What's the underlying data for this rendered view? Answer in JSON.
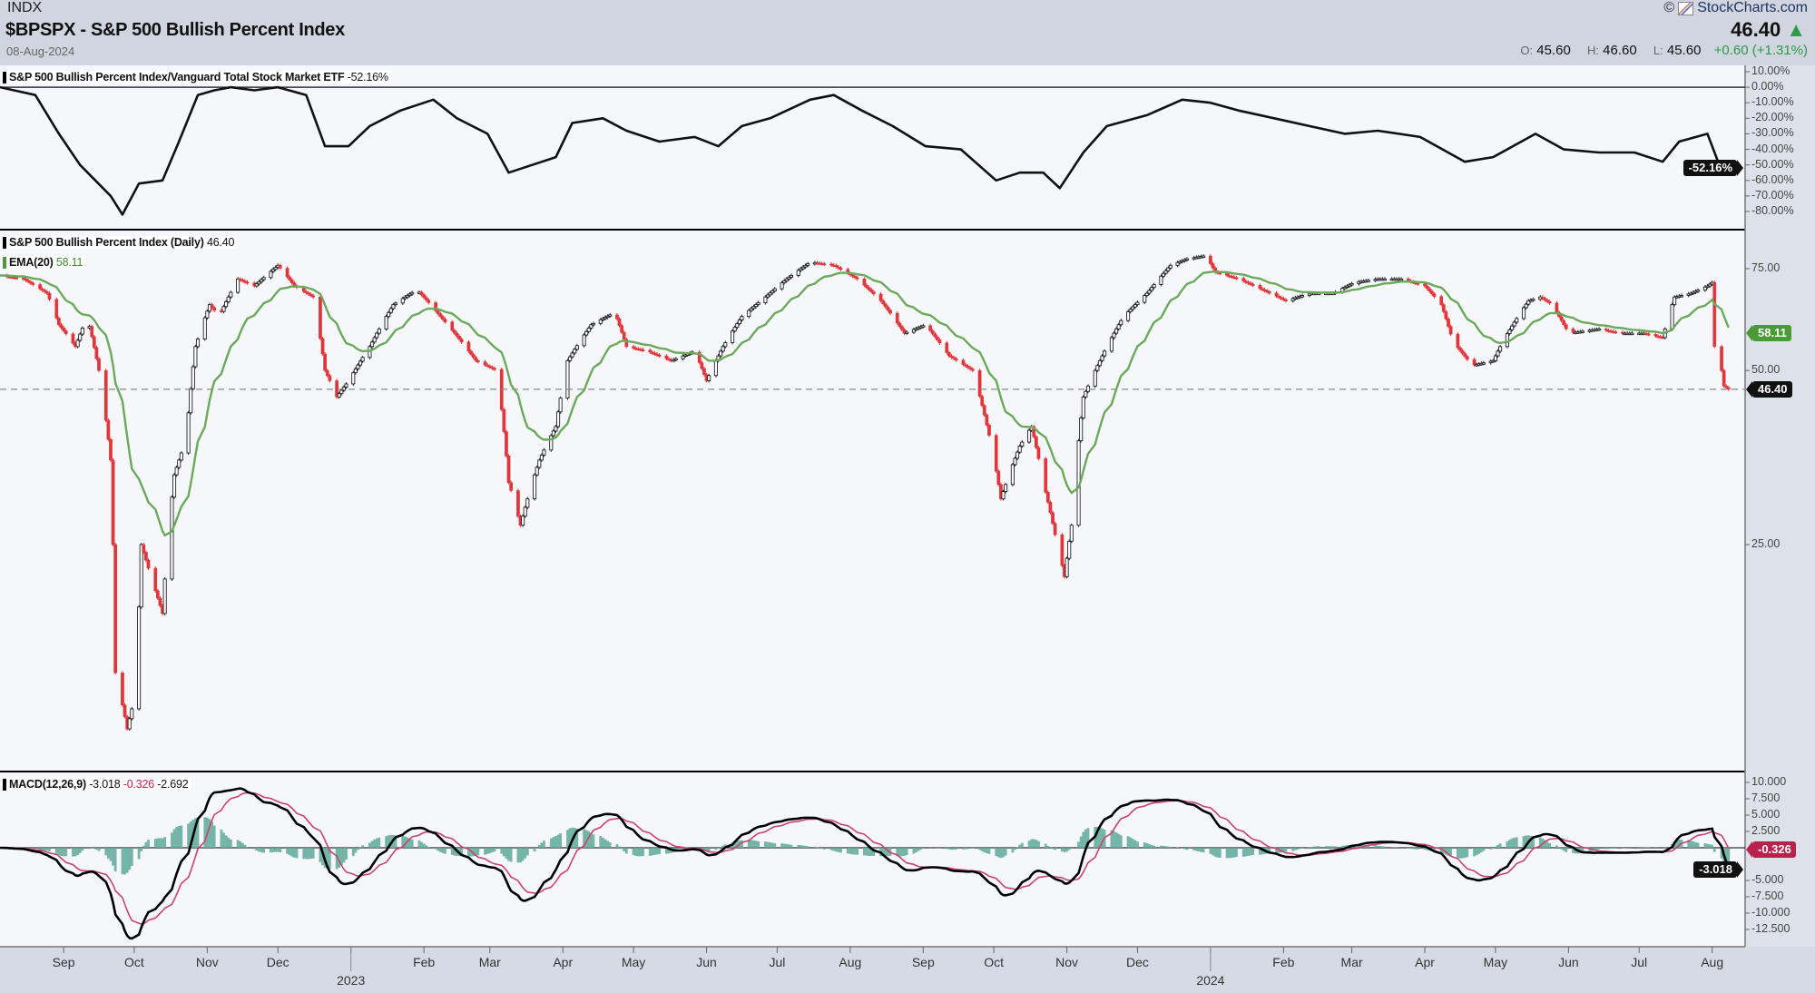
{
  "header": {
    "exchange": "INDX",
    "title": "$BPSPX - S&P 500 Bullish Percent Index",
    "date": "08-Aug-2024",
    "logo": "StockCharts.com",
    "copyright": "©",
    "last": "46.40",
    "direction_icon": "triangle-up",
    "open_label": "O:",
    "open": "45.60",
    "high_label": "H:",
    "high": "46.60",
    "low_label": "L:",
    "low": "45.60",
    "change": "+0.60 (+1.31%)"
  },
  "colors": {
    "up": "#2e9a48",
    "down": "#e0363a",
    "ema": "#6aaa5a",
    "macd": "#000000",
    "signal": "#c8446e",
    "histogram": "#5fa99a"
  },
  "chart_data": [
    {
      "type": "line",
      "panel": "ratio",
      "legend": "S&P 500 Bullish Percent Index/Vanguard Total Stock Market ETF",
      "legend_value": "-52.16%",
      "last_tag": "-52.16%",
      "ylim": [
        -85,
        12
      ],
      "yticks": [
        "10.00%",
        "0.00%",
        "-10.00%",
        "-20.00%",
        "-30.00%",
        "-40.00%",
        "-50.00%",
        "-60.00%",
        "-70.00%",
        "-80.00%"
      ],
      "ytick_values": [
        10,
        0,
        -10,
        -20,
        -30,
        -40,
        -50,
        -60,
        -70,
        -80
      ],
      "points": [
        [
          "2022-08-05",
          0
        ],
        [
          "2022-08-20",
          -5
        ],
        [
          "2022-08-30",
          -30
        ],
        [
          "2022-09-08",
          -50
        ],
        [
          "2022-09-21",
          -70
        ],
        [
          "2022-09-26",
          -82
        ],
        [
          "2022-10-03",
          -62
        ],
        [
          "2022-10-13",
          -60
        ],
        [
          "2022-10-20",
          -35
        ],
        [
          "2022-10-28",
          -5
        ],
        [
          "2022-11-04",
          -2
        ],
        [
          "2022-11-11",
          0
        ],
        [
          "2022-11-21",
          -2
        ],
        [
          "2022-12-01",
          0
        ],
        [
          "2022-12-13",
          -5
        ],
        [
          "2022-12-21",
          -38
        ],
        [
          "2022-12-31",
          -38
        ],
        [
          "2023-01-09",
          -25
        ],
        [
          "2023-01-22",
          -15
        ],
        [
          "2023-02-05",
          -8
        ],
        [
          "2023-02-15",
          -20
        ],
        [
          "2023-02-28",
          -30
        ],
        [
          "2023-03-09",
          -55
        ],
        [
          "2023-03-19",
          -50
        ],
        [
          "2023-03-29",
          -45
        ],
        [
          "2023-04-05",
          -23
        ],
        [
          "2023-04-18",
          -20
        ],
        [
          "2023-04-28",
          -28
        ],
        [
          "2023-05-12",
          -35
        ],
        [
          "2023-05-27",
          -32
        ],
        [
          "2023-06-06",
          -38
        ],
        [
          "2023-06-16",
          -25
        ],
        [
          "2023-06-28",
          -20
        ],
        [
          "2023-07-15",
          -8
        ],
        [
          "2023-07-25",
          -5
        ],
        [
          "2023-08-06",
          -15
        ],
        [
          "2023-08-19",
          -25
        ],
        [
          "2023-09-02",
          -38
        ],
        [
          "2023-09-17",
          -40
        ],
        [
          "2023-10-02",
          -60
        ],
        [
          "2023-10-12",
          -55
        ],
        [
          "2023-10-22",
          -55
        ],
        [
          "2023-10-29",
          -65
        ],
        [
          "2023-11-08",
          -42
        ],
        [
          "2023-11-18",
          -25
        ],
        [
          "2023-12-05",
          -18
        ],
        [
          "2023-12-20",
          -8
        ],
        [
          "2024-01-01",
          -10
        ],
        [
          "2024-01-13",
          -15
        ],
        [
          "2024-01-28",
          -20
        ],
        [
          "2024-02-12",
          -25
        ],
        [
          "2024-02-27",
          -30
        ],
        [
          "2024-03-12",
          -28
        ],
        [
          "2024-03-30",
          -32
        ],
        [
          "2024-04-18",
          -48
        ],
        [
          "2024-04-30",
          -45
        ],
        [
          "2024-05-18",
          -30
        ],
        [
          "2024-05-30",
          -40
        ],
        [
          "2024-06-14",
          -42
        ],
        [
          "2024-06-29",
          -42
        ],
        [
          "2024-07-11",
          -48
        ],
        [
          "2024-07-18",
          -35
        ],
        [
          "2024-07-30",
          -30
        ],
        [
          "2024-08-04",
          -50
        ],
        [
          "2024-08-08",
          -52.16
        ]
      ]
    },
    {
      "type": "candlestick",
      "panel": "price",
      "scale": "log",
      "legend": "S&P 500 Bullish Percent Index (Daily)",
      "legend_value": "46.40",
      "ema_legend": "EMA(20)",
      "ema_value": "58.11",
      "last_tag": "46.40",
      "ema_tag": "58.11",
      "last_value": 46.4,
      "ema_last_value": 58.11,
      "yticks": [
        "75.00",
        "50.00",
        "25.00"
      ],
      "ytick_values": [
        75,
        50,
        25
      ],
      "close_points": [
        [
          "2022-08-05",
          73
        ],
        [
          "2022-08-15",
          72
        ],
        [
          "2022-08-25",
          68
        ],
        [
          "2022-08-30",
          60
        ],
        [
          "2022-09-06",
          55
        ],
        [
          "2022-09-11",
          62
        ],
        [
          "2022-09-16",
          50
        ],
        [
          "2022-09-21",
          35
        ],
        [
          "2022-09-23",
          15
        ],
        [
          "2022-09-28",
          12
        ],
        [
          "2022-10-02",
          14
        ],
        [
          "2022-10-04",
          25
        ],
        [
          "2022-10-08",
          22
        ],
        [
          "2022-10-13",
          19
        ],
        [
          "2022-10-18",
          33
        ],
        [
          "2022-10-23",
          38
        ],
        [
          "2022-10-27",
          55
        ],
        [
          "2022-11-02",
          65
        ],
        [
          "2022-11-06",
          62
        ],
        [
          "2022-11-14",
          72
        ],
        [
          "2022-11-21",
          70
        ],
        [
          "2022-12-01",
          76
        ],
        [
          "2022-12-08",
          70
        ],
        [
          "2022-12-16",
          67
        ],
        [
          "2022-12-21",
          50
        ],
        [
          "2022-12-26",
          45
        ],
        [
          "2022-12-31",
          48
        ],
        [
          "2023-01-09",
          55
        ],
        [
          "2023-01-19",
          65
        ],
        [
          "2023-01-29",
          69
        ],
        [
          "2023-02-08",
          62
        ],
        [
          "2023-02-23",
          52
        ],
        [
          "2023-03-04",
          50
        ],
        [
          "2023-03-09",
          32
        ],
        [
          "2023-03-14",
          27
        ],
        [
          "2023-03-22",
          35
        ],
        [
          "2023-03-29",
          40
        ],
        [
          "2023-04-03",
          52
        ],
        [
          "2023-04-13",
          60
        ],
        [
          "2023-04-23",
          63
        ],
        [
          "2023-04-28",
          55
        ],
        [
          "2023-05-07",
          54
        ],
        [
          "2023-05-17",
          52
        ],
        [
          "2023-05-27",
          54
        ],
        [
          "2023-06-01",
          48
        ],
        [
          "2023-06-08",
          55
        ],
        [
          "2023-06-16",
          62
        ],
        [
          "2023-06-26",
          67
        ],
        [
          "2023-07-05",
          72
        ],
        [
          "2023-07-15",
          77
        ],
        [
          "2023-07-25",
          76
        ],
        [
          "2023-08-04",
          72
        ],
        [
          "2023-08-14",
          66
        ],
        [
          "2023-08-24",
          58
        ],
        [
          "2023-09-02",
          60
        ],
        [
          "2023-09-12",
          53
        ],
        [
          "2023-09-22",
          50
        ],
        [
          "2023-09-30",
          37
        ],
        [
          "2023-10-04",
          30
        ],
        [
          "2023-10-12",
          37
        ],
        [
          "2023-10-17",
          40
        ],
        [
          "2023-10-22",
          32
        ],
        [
          "2023-10-27",
          26
        ],
        [
          "2023-10-31",
          22
        ],
        [
          "2023-11-03",
          27
        ],
        [
          "2023-11-08",
          45
        ],
        [
          "2023-11-15",
          52
        ],
        [
          "2023-11-25",
          62
        ],
        [
          "2023-12-05",
          68
        ],
        [
          "2023-12-15",
          76
        ],
        [
          "2023-12-22",
          78
        ],
        [
          "2023-12-30",
          79
        ],
        [
          "2024-01-03",
          74
        ],
        [
          "2024-01-13",
          72
        ],
        [
          "2024-01-23",
          69
        ],
        [
          "2024-02-02",
          66
        ],
        [
          "2024-02-12",
          68
        ],
        [
          "2024-02-22",
          68
        ],
        [
          "2024-03-02",
          71
        ],
        [
          "2024-03-12",
          72
        ],
        [
          "2024-03-22",
          72
        ],
        [
          "2024-04-01",
          70
        ],
        [
          "2024-04-08",
          65
        ],
        [
          "2024-04-13",
          56
        ],
        [
          "2024-04-21",
          51
        ],
        [
          "2024-04-30",
          52
        ],
        [
          "2024-05-05",
          57
        ],
        [
          "2024-05-15",
          66
        ],
        [
          "2024-05-20",
          67
        ],
        [
          "2024-05-25",
          65
        ],
        [
          "2024-06-01",
          58
        ],
        [
          "2024-06-14",
          59
        ],
        [
          "2024-06-23",
          58
        ],
        [
          "2024-07-03",
          58
        ],
        [
          "2024-07-11",
          57
        ],
        [
          "2024-07-16",
          67
        ],
        [
          "2024-07-23",
          68
        ],
        [
          "2024-07-30",
          70
        ],
        [
          "2024-08-01",
          71
        ],
        [
          "2024-08-02",
          55
        ],
        [
          "2024-08-05",
          50
        ],
        [
          "2024-08-06",
          47
        ],
        [
          "2024-08-08",
          46.4
        ]
      ]
    },
    {
      "type": "line+bar",
      "panel": "macd",
      "legend": "MACD(12,26,9)",
      "macd_value": "-3.018",
      "signal_value": "-0.326",
      "histogram_value": "-2.692",
      "signal_tag": "-0.326",
      "macd_tag": "-3.018",
      "ylim": [
        -14,
        11
      ],
      "yticks": [
        "10.000",
        "7.500",
        "5.000",
        "2.500",
        "-5.000",
        "-7.500",
        "-10.000",
        "-12.500"
      ],
      "ytick_values": [
        10,
        7.5,
        5,
        2.5,
        -5,
        -7.5,
        -10,
        -12.5
      ]
    }
  ],
  "xaxis": {
    "xlim": [
      "2022-08-05",
      "2024-08-15"
    ],
    "months": [
      {
        "date": "2022-09-01",
        "label": "Sep"
      },
      {
        "date": "2022-10-01",
        "label": "Oct"
      },
      {
        "date": "2022-11-01",
        "label": "Nov"
      },
      {
        "date": "2022-12-01",
        "label": "Dec"
      },
      {
        "date": "2023-01-01",
        "label": ""
      },
      {
        "date": "2023-02-01",
        "label": "Feb"
      },
      {
        "date": "2023-03-01",
        "label": "Mar"
      },
      {
        "date": "2023-04-01",
        "label": "Apr"
      },
      {
        "date": "2023-05-01",
        "label": "May"
      },
      {
        "date": "2023-06-01",
        "label": "Jun"
      },
      {
        "date": "2023-07-01",
        "label": "Jul"
      },
      {
        "date": "2023-08-01",
        "label": "Aug"
      },
      {
        "date": "2023-09-01",
        "label": "Sep"
      },
      {
        "date": "2023-10-01",
        "label": "Oct"
      },
      {
        "date": "2023-11-01",
        "label": "Nov"
      },
      {
        "date": "2023-12-01",
        "label": "Dec"
      },
      {
        "date": "2024-01-01",
        "label": ""
      },
      {
        "date": "2024-02-01",
        "label": "Feb"
      },
      {
        "date": "2024-03-01",
        "label": "Mar"
      },
      {
        "date": "2024-04-01",
        "label": "Apr"
      },
      {
        "date": "2024-05-01",
        "label": "May"
      },
      {
        "date": "2024-06-01",
        "label": "Jun"
      },
      {
        "date": "2024-07-01",
        "label": "Jul"
      },
      {
        "date": "2024-08-01",
        "label": "Aug"
      }
    ],
    "years": [
      {
        "date": "2023-01-01",
        "label": "2023"
      },
      {
        "date": "2024-01-01",
        "label": "2024"
      }
    ]
  }
}
